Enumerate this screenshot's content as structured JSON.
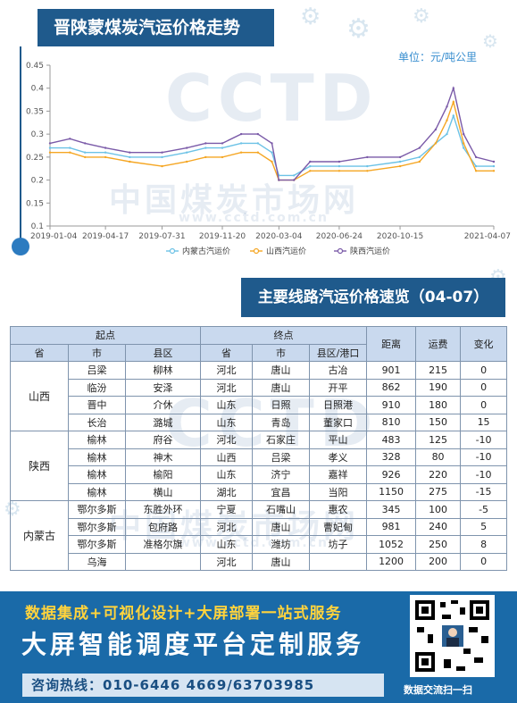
{
  "header": {
    "title": "晋陕蒙煤炭汽运价格走势"
  },
  "chart_data": {
    "type": "line",
    "unit": "单位：元/吨公里",
    "x_ticks": [
      "2019-01-04",
      "2019-04-17",
      "2019-07-31",
      "2019-11-20",
      "2020-03-04",
      "2020-06-24",
      "2020-10-15",
      "2021-04-07"
    ],
    "y_ticks": [
      "0.1",
      "0.15",
      "0.2",
      "0.25",
      "0.3",
      "0.35",
      "0.4",
      "0.45"
    ],
    "ylim": [
      0.1,
      0.45
    ],
    "xlim": [
      "2019-01-04",
      "2021-04-07"
    ],
    "series": [
      {
        "name": "内蒙古汽运价",
        "color": "#6cc2e6",
        "points": [
          [
            "2019-01-04",
            0.27
          ],
          [
            "2019-02-10",
            0.27
          ],
          [
            "2019-03-10",
            0.26
          ],
          [
            "2019-04-17",
            0.26
          ],
          [
            "2019-06-01",
            0.25
          ],
          [
            "2019-07-31",
            0.25
          ],
          [
            "2019-09-15",
            0.26
          ],
          [
            "2019-10-20",
            0.27
          ],
          [
            "2019-11-20",
            0.27
          ],
          [
            "2019-12-25",
            0.28
          ],
          [
            "2020-01-25",
            0.28
          ],
          [
            "2020-02-20",
            0.26
          ],
          [
            "2020-03-04",
            0.21
          ],
          [
            "2020-04-01",
            0.21
          ],
          [
            "2020-05-01",
            0.23
          ],
          [
            "2020-06-24",
            0.23
          ],
          [
            "2020-08-15",
            0.23
          ],
          [
            "2020-10-15",
            0.24
          ],
          [
            "2020-11-20",
            0.25
          ],
          [
            "2020-12-20",
            0.28
          ],
          [
            "2021-01-10",
            0.3
          ],
          [
            "2021-01-22",
            0.34
          ],
          [
            "2021-02-10",
            0.27
          ],
          [
            "2021-03-05",
            0.23
          ],
          [
            "2021-04-07",
            0.23
          ]
        ]
      },
      {
        "name": "山西汽运价",
        "color": "#f5a623",
        "points": [
          [
            "2019-01-04",
            0.26
          ],
          [
            "2019-02-10",
            0.26
          ],
          [
            "2019-03-10",
            0.25
          ],
          [
            "2019-04-17",
            0.25
          ],
          [
            "2019-06-01",
            0.24
          ],
          [
            "2019-07-31",
            0.23
          ],
          [
            "2019-09-15",
            0.24
          ],
          [
            "2019-10-20",
            0.25
          ],
          [
            "2019-11-20",
            0.25
          ],
          [
            "2019-12-25",
            0.26
          ],
          [
            "2020-01-25",
            0.26
          ],
          [
            "2020-02-20",
            0.24
          ],
          [
            "2020-03-04",
            0.2
          ],
          [
            "2020-04-01",
            0.2
          ],
          [
            "2020-05-01",
            0.22
          ],
          [
            "2020-06-24",
            0.22
          ],
          [
            "2020-08-15",
            0.22
          ],
          [
            "2020-10-15",
            0.23
          ],
          [
            "2020-11-20",
            0.24
          ],
          [
            "2020-12-20",
            0.28
          ],
          [
            "2021-01-10",
            0.33
          ],
          [
            "2021-01-22",
            0.37
          ],
          [
            "2021-02-10",
            0.28
          ],
          [
            "2021-03-05",
            0.22
          ],
          [
            "2021-04-07",
            0.22
          ]
        ]
      },
      {
        "name": "陕西汽运价",
        "color": "#7a5aa8",
        "points": [
          [
            "2019-01-04",
            0.28
          ],
          [
            "2019-02-10",
            0.29
          ],
          [
            "2019-03-10",
            0.28
          ],
          [
            "2019-04-17",
            0.27
          ],
          [
            "2019-06-01",
            0.26
          ],
          [
            "2019-07-31",
            0.26
          ],
          [
            "2019-09-15",
            0.27
          ],
          [
            "2019-10-20",
            0.28
          ],
          [
            "2019-11-20",
            0.28
          ],
          [
            "2019-12-25",
            0.3
          ],
          [
            "2020-01-25",
            0.3
          ],
          [
            "2020-02-20",
            0.28
          ],
          [
            "2020-03-04",
            0.2
          ],
          [
            "2020-04-01",
            0.2
          ],
          [
            "2020-05-01",
            0.24
          ],
          [
            "2020-06-24",
            0.24
          ],
          [
            "2020-08-15",
            0.25
          ],
          [
            "2020-10-15",
            0.25
          ],
          [
            "2020-11-20",
            0.27
          ],
          [
            "2020-12-20",
            0.31
          ],
          [
            "2021-01-10",
            0.36
          ],
          [
            "2021-01-22",
            0.4
          ],
          [
            "2021-02-10",
            0.3
          ],
          [
            "2021-03-05",
            0.25
          ],
          [
            "2021-04-07",
            0.24
          ]
        ]
      }
    ]
  },
  "watermark": {
    "logo": "CCTD",
    "cn": "中国煤炭市场网",
    "url": "www.cctd.com.cn"
  },
  "section_title": "主要线路汽运价格速览（04-07）",
  "table": {
    "header_start": "起点",
    "header_end": "终点",
    "header_distance": "距离",
    "header_freight": "运费",
    "header_change": "变化",
    "sub_province": "省",
    "sub_city": "市",
    "sub_county": "县区",
    "sub_province2": "省",
    "sub_city2": "市",
    "sub_county_port": "县区/港口",
    "groups": [
      {
        "province": "山西",
        "rows": [
          {
            "city": "吕梁",
            "county": "柳林",
            "d_province": "河北",
            "d_city": "唐山",
            "d_county": "古冶",
            "distance": "901",
            "freight": "215",
            "change": "0"
          },
          {
            "city": "临汾",
            "county": "安泽",
            "d_province": "河北",
            "d_city": "唐山",
            "d_county": "开平",
            "distance": "862",
            "freight": "190",
            "change": "0"
          },
          {
            "city": "晋中",
            "county": "介休",
            "d_province": "山东",
            "d_city": "日照",
            "d_county": "日照港",
            "distance": "910",
            "freight": "180",
            "change": "0"
          },
          {
            "city": "长治",
            "county": "潞城",
            "d_province": "山东",
            "d_city": "青岛",
            "d_county": "董家口",
            "distance": "810",
            "freight": "150",
            "change": "15"
          }
        ]
      },
      {
        "province": "陕西",
        "rows": [
          {
            "city": "榆林",
            "county": "府谷",
            "d_province": "河北",
            "d_city": "石家庄",
            "d_county": "平山",
            "distance": "483",
            "freight": "125",
            "change": "-10"
          },
          {
            "city": "榆林",
            "county": "神木",
            "d_province": "山西",
            "d_city": "吕梁",
            "d_county": "孝义",
            "distance": "328",
            "freight": "80",
            "change": "-10"
          },
          {
            "city": "榆林",
            "county": "榆阳",
            "d_province": "山东",
            "d_city": "济宁",
            "d_county": "嘉祥",
            "distance": "926",
            "freight": "220",
            "change": "-10"
          },
          {
            "city": "榆林",
            "county": "横山",
            "d_province": "湖北",
            "d_city": "宜昌",
            "d_county": "当阳",
            "distance": "1150",
            "freight": "275",
            "change": "-15"
          }
        ]
      },
      {
        "province": "内蒙古",
        "rows": [
          {
            "city": "鄂尔多斯",
            "county": "东胜外环",
            "d_province": "宁夏",
            "d_city": "石嘴山",
            "d_county": "惠农",
            "distance": "345",
            "freight": "100",
            "change": "-5"
          },
          {
            "city": "鄂尔多斯",
            "county": "包府路",
            "d_province": "河北",
            "d_city": "唐山",
            "d_county": "曹妃甸",
            "distance": "981",
            "freight": "240",
            "change": "5"
          },
          {
            "city": "鄂尔多斯",
            "county": "准格尔旗",
            "d_province": "山东",
            "d_city": "潍坊",
            "d_county": "坊子",
            "distance": "1052",
            "freight": "250",
            "change": "8"
          },
          {
            "city": "乌海",
            "county": "",
            "d_province": "河北",
            "d_city": "唐山",
            "d_county": "",
            "distance": "1200",
            "freight": "200",
            "change": "0"
          }
        ]
      }
    ]
  },
  "footer": {
    "line1": "数据集成+可视化设计+大屏部署一站式服务",
    "line2": "大屏智能调度平台定制服务",
    "phone": "咨询热线：010-6446 4669/63703985",
    "qr_caption": "数据交流扫一扫"
  }
}
